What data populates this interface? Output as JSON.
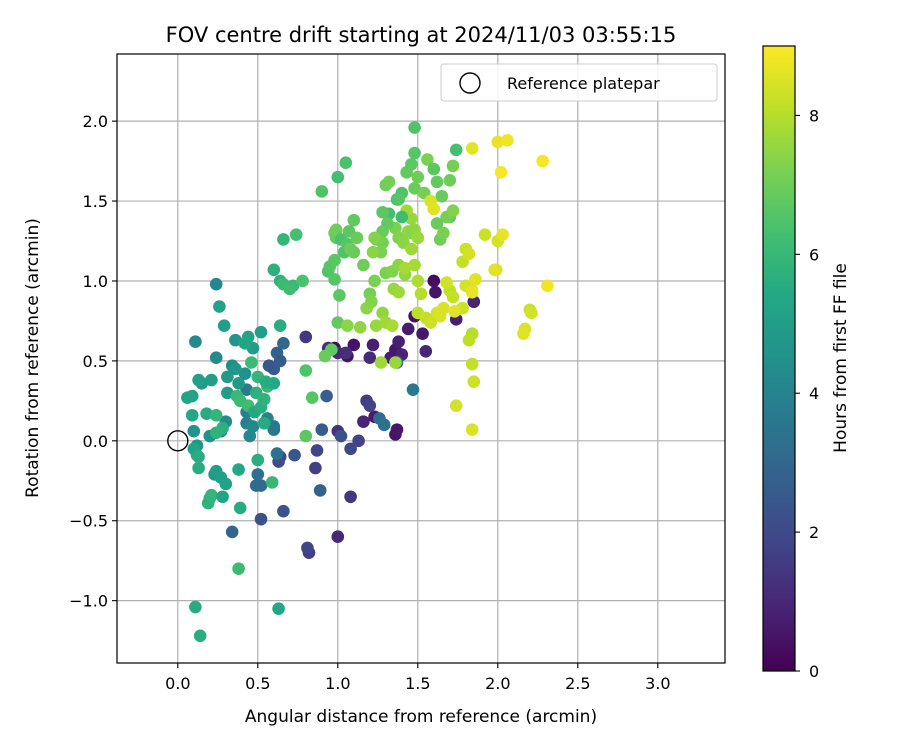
{
  "chart_data": {
    "type": "scatter",
    "title": "FOV centre drift starting at 2024/11/03 03:55:15",
    "xlabel": "Angular distance from reference (arcmin)",
    "ylabel": "Rotation from reference (arcmin)",
    "xlim": [
      -0.38,
      3.42
    ],
    "ylim": [
      -1.39,
      2.42
    ],
    "xticks": [
      0.0,
      0.5,
      1.0,
      1.5,
      2.0,
      2.5,
      3.0
    ],
    "xtick_labels": [
      "0.0",
      "0.5",
      "1.0",
      "1.5",
      "2.0",
      "2.5",
      "3.0"
    ],
    "yticks": [
      -1.0,
      -0.5,
      0.0,
      0.5,
      1.0,
      1.5,
      2.0
    ],
    "ytick_labels": [
      "−1.0",
      "−0.5",
      "0.0",
      "0.5",
      "1.0",
      "1.5",
      "2.0"
    ],
    "grid": true,
    "legend": {
      "position": "upper-right",
      "entries": [
        "Reference platepar"
      ]
    },
    "reference_point": {
      "x": 0.0,
      "y": 0.0
    },
    "colorbar": {
      "label": "Hours from first FF file",
      "min": 0,
      "max": 9.0,
      "ticks": [
        0,
        2,
        4,
        6,
        8
      ],
      "tick_labels": [
        "0",
        "2",
        "4",
        "6",
        "8"
      ],
      "colormap": "viridis"
    },
    "color_variable": "hours",
    "points": [
      [
        0.98,
        0.58,
        0.3
      ],
      [
        1.06,
        0.53,
        0.4
      ],
      [
        1.1,
        0.6,
        0.5
      ],
      [
        1.22,
        0.6,
        0.8
      ],
      [
        1.33,
        0.52,
        0.7
      ],
      [
        1.36,
        0.57,
        0.6
      ],
      [
        1.38,
        0.62,
        0.8
      ],
      [
        1.4,
        0.54,
        0.9
      ],
      [
        1.44,
        0.7,
        0.7
      ],
      [
        1.48,
        0.78,
        0.5
      ],
      [
        1.53,
        0.67,
        0.6
      ],
      [
        1.6,
        1.0,
        0.3
      ],
      [
        1.61,
        0.93,
        0.5
      ],
      [
        1.74,
        0.76,
        0.8
      ],
      [
        1.85,
        0.87,
        0.9
      ],
      [
        1.55,
        0.56,
        1.0
      ],
      [
        1.2,
        0.52,
        1.1
      ],
      [
        1.05,
        0.55,
        1.2
      ],
      [
        1.0,
        0.55,
        1.1
      ],
      [
        1.23,
        0.15,
        0.7
      ],
      [
        1.36,
        0.04,
        0.5
      ],
      [
        1.37,
        0.07,
        0.6
      ],
      [
        1.16,
        0.12,
        0.9
      ],
      [
        0.94,
        0.58,
        1.3
      ],
      [
        0.8,
        0.65,
        1.4
      ],
      [
        1.0,
        0.06,
        1.3
      ],
      [
        1.0,
        -0.6,
        1.0
      ],
      [
        1.08,
        -0.35,
        1.4
      ],
      [
        0.82,
        -0.7,
        1.6
      ],
      [
        0.81,
        -0.67,
        1.8
      ],
      [
        0.86,
        -0.17,
        1.7
      ],
      [
        0.87,
        -0.06,
        1.9
      ],
      [
        0.64,
        -0.1,
        2.0
      ],
      [
        0.63,
        -0.13,
        2.1
      ],
      [
        0.52,
        -0.49,
        2.2
      ],
      [
        0.66,
        -0.44,
        2.3
      ],
      [
        0.73,
        -0.09,
        2.4
      ],
      [
        1.02,
        0.03,
        2.2
      ],
      [
        1.08,
        -0.05,
        2.0
      ],
      [
        1.13,
        0.0,
        1.8
      ],
      [
        1.18,
        0.25,
        1.6
      ],
      [
        1.2,
        0.22,
        1.8
      ],
      [
        0.9,
        0.07,
        2.6
      ],
      [
        0.89,
        -0.31,
        2.8
      ],
      [
        0.93,
        0.28,
        2.7
      ],
      [
        0.6,
        0.45,
        2.6
      ],
      [
        0.62,
        0.55,
        2.8
      ],
      [
        0.57,
        0.47,
        2.4
      ],
      [
        0.64,
        0.5,
        2.6
      ],
      [
        0.66,
        0.61,
        2.9
      ],
      [
        0.34,
        -0.57,
        3.0
      ],
      [
        0.52,
        -0.28,
        3.2
      ],
      [
        0.49,
        -0.28,
        3.1
      ],
      [
        0.5,
        -0.21,
        3.3
      ],
      [
        0.62,
        -0.08,
        3.4
      ],
      [
        0.6,
        0.07,
        3.5
      ],
      [
        1.26,
        0.14,
        3.2
      ],
      [
        1.29,
        0.1,
        3.4
      ],
      [
        1.37,
        0.49,
        3.5
      ],
      [
        1.47,
        0.32,
        3.6
      ],
      [
        0.6,
        0.09,
        3.6
      ],
      [
        0.43,
        0.32,
        3.7
      ],
      [
        0.43,
        0.18,
        3.8
      ],
      [
        0.43,
        0.11,
        3.9
      ],
      [
        0.56,
        0.14,
        4.0
      ],
      [
        0.45,
        0.03,
        4.1
      ],
      [
        0.47,
        0.09,
        4.2
      ],
      [
        0.3,
        0.12,
        4.3
      ],
      [
        0.27,
        0.06,
        4.4
      ],
      [
        0.2,
        0.03,
        4.5
      ],
      [
        0.1,
        0.06,
        4.6
      ],
      [
        0.12,
        -0.03,
        4.7
      ],
      [
        0.23,
        -0.21,
        4.8
      ],
      [
        0.15,
        0.36,
        4.9
      ],
      [
        0.21,
        0.38,
        5.0
      ],
      [
        0.13,
        0.38,
        5.1
      ],
      [
        0.09,
        0.28,
        5.2
      ],
      [
        0.06,
        0.27,
        5.3
      ],
      [
        0.09,
        0.16,
        5.4
      ],
      [
        0.18,
        0.17,
        5.5
      ],
      [
        0.11,
        0.62,
        4.2
      ],
      [
        0.24,
        0.52,
        4.3
      ],
      [
        0.34,
        0.47,
        4.4
      ],
      [
        0.42,
        0.42,
        4.5
      ],
      [
        0.36,
        0.63,
        4.6
      ],
      [
        0.36,
        0.45,
        4.7
      ],
      [
        0.31,
        0.4,
        4.8
      ],
      [
        0.38,
        0.36,
        4.9
      ],
      [
        0.31,
        0.3,
        5.0
      ],
      [
        0.29,
        0.72,
        5.1
      ],
      [
        0.24,
        0.98,
        4.1
      ],
      [
        0.26,
        0.84,
        5.2
      ],
      [
        0.1,
        -0.05,
        5.3
      ],
      [
        0.12,
        -0.09,
        5.4
      ],
      [
        0.13,
        -0.17,
        5.5
      ],
      [
        0.13,
        -0.1,
        5.6
      ],
      [
        0.2,
        -0.36,
        5.7
      ],
      [
        0.19,
        -0.39,
        5.8
      ],
      [
        0.21,
        -0.34,
        5.9
      ],
      [
        0.24,
        -0.19,
        5.0
      ],
      [
        0.27,
        -0.23,
        5.1
      ],
      [
        0.3,
        -0.27,
        5.2
      ],
      [
        0.28,
        -0.35,
        5.3
      ],
      [
        0.38,
        -0.18,
        5.4
      ],
      [
        0.39,
        -0.42,
        5.5
      ],
      [
        0.5,
        -0.12,
        5.6
      ],
      [
        0.59,
        -0.26,
        6.0
      ],
      [
        0.38,
        -0.8,
        6.1
      ],
      [
        0.63,
        -1.05,
        5.4
      ],
      [
        0.11,
        -1.04,
        5.5
      ],
      [
        0.14,
        -1.22,
        5.6
      ],
      [
        0.28,
        0.08,
        5.7
      ],
      [
        0.24,
        0.05,
        5.8
      ],
      [
        0.24,
        0.16,
        5.9
      ],
      [
        0.37,
        0.28,
        6.0
      ],
      [
        0.39,
        0.25,
        6.1
      ],
      [
        0.44,
        0.22,
        6.2
      ],
      [
        0.48,
        0.18,
        5.4
      ],
      [
        0.54,
        0.11,
        5.5
      ],
      [
        0.52,
        0.21,
        5.6
      ],
      [
        0.49,
        0.3,
        5.7
      ],
      [
        0.54,
        0.26,
        5.8
      ],
      [
        0.5,
        0.4,
        5.9
      ],
      [
        0.56,
        0.34,
        6.0
      ],
      [
        0.46,
        0.49,
        6.1
      ],
      [
        0.47,
        0.58,
        5.0
      ],
      [
        0.52,
        0.68,
        5.1
      ],
      [
        0.44,
        0.65,
        5.2
      ],
      [
        0.42,
        0.61,
        5.3
      ],
      [
        0.6,
        0.36,
        5.4
      ],
      [
        0.55,
        0.37,
        5.5
      ],
      [
        0.64,
        0.72,
        5.6
      ],
      [
        0.6,
        1.07,
        5.7
      ],
      [
        0.64,
        1.0,
        5.8
      ],
      [
        0.66,
        1.26,
        5.9
      ],
      [
        0.72,
        0.97,
        6.0
      ],
      [
        0.66,
        0.98,
        6.1
      ],
      [
        0.7,
        0.95,
        6.2
      ],
      [
        0.74,
        1.29,
        6.3
      ],
      [
        0.78,
        1.0,
        6.4
      ],
      [
        0.8,
        0.44,
        6.5
      ],
      [
        0.84,
        0.27,
        6.6
      ],
      [
        0.8,
        0.03,
        6.7
      ],
      [
        0.96,
        0.57,
        6.8
      ],
      [
        0.92,
        0.53,
        6.9
      ],
      [
        0.94,
        1.06,
        6.5
      ],
      [
        0.95,
        1.09,
        6.6
      ],
      [
        0.98,
        1.13,
        6.7
      ],
      [
        0.99,
        1.27,
        6.8
      ],
      [
        0.98,
        1.3,
        6.9
      ],
      [
        0.99,
        1.32,
        7.0
      ],
      [
        1.02,
        1.26,
        6.4
      ],
      [
        1.04,
        1.18,
        6.5
      ],
      [
        1.06,
        1.23,
        6.6
      ],
      [
        1.07,
        1.31,
        6.7
      ],
      [
        1.1,
        1.38,
        6.8
      ],
      [
        1.12,
        1.27,
        6.9
      ],
      [
        1.08,
        1.2,
        7.0
      ],
      [
        1.0,
        1.65,
        6.3
      ],
      [
        1.05,
        1.74,
        6.4
      ],
      [
        0.9,
        1.56,
        6.5
      ],
      [
        0.98,
        1.01,
        6.6
      ],
      [
        1.01,
        0.91,
        6.7
      ],
      [
        1.0,
        0.74,
        6.8
      ],
      [
        1.1,
        1.18,
        6.9
      ],
      [
        1.16,
        1.1,
        7.0
      ],
      [
        1.2,
        0.92,
        7.1
      ],
      [
        1.23,
        1.0,
        7.2
      ],
      [
        1.21,
        0.87,
        7.3
      ],
      [
        1.18,
        0.83,
        7.4
      ],
      [
        1.28,
        0.8,
        7.5
      ],
      [
        1.24,
        0.72,
        7.6
      ],
      [
        1.3,
        0.74,
        7.7
      ],
      [
        1.34,
        0.72,
        7.8
      ],
      [
        1.06,
        0.72,
        7.4
      ],
      [
        1.14,
        0.71,
        7.5
      ],
      [
        1.36,
        0.49,
        7.6
      ],
      [
        1.27,
        0.49,
        7.7
      ],
      [
        1.3,
        1.05,
        7.2
      ],
      [
        1.34,
        1.06,
        7.3
      ],
      [
        1.38,
        1.1,
        7.4
      ],
      [
        1.42,
        1.04,
        7.5
      ],
      [
        1.35,
        0.95,
        7.6
      ],
      [
        1.38,
        0.93,
        7.7
      ],
      [
        1.42,
        1.08,
        7.8
      ],
      [
        1.36,
        1.33,
        7.2
      ],
      [
        1.38,
        1.27,
        7.3
      ],
      [
        1.41,
        1.24,
        7.4
      ],
      [
        1.44,
        1.31,
        7.5
      ],
      [
        1.46,
        1.39,
        7.6
      ],
      [
        1.43,
        1.44,
        7.7
      ],
      [
        1.4,
        1.4,
        6.2
      ],
      [
        1.32,
        1.42,
        6.3
      ],
      [
        1.37,
        1.51,
        6.4
      ],
      [
        1.4,
        1.55,
        6.5
      ],
      [
        1.38,
        1.51,
        6.6
      ],
      [
        1.28,
        1.43,
        6.7
      ],
      [
        1.31,
        1.36,
        6.8
      ],
      [
        1.28,
        1.31,
        6.9
      ],
      [
        1.24,
        1.26,
        7.0
      ],
      [
        1.28,
        1.24,
        7.1
      ],
      [
        1.27,
        1.18,
        7.2
      ],
      [
        1.23,
        1.27,
        7.3
      ],
      [
        1.22,
        1.18,
        7.4
      ],
      [
        1.3,
        1.6,
        7.0
      ],
      [
        1.32,
        1.62,
        7.1
      ],
      [
        1.48,
        1.96,
        6.5
      ],
      [
        1.48,
        1.8,
        6.6
      ],
      [
        1.46,
        1.73,
        6.7
      ],
      [
        1.43,
        1.68,
        6.8
      ],
      [
        1.48,
        1.58,
        6.9
      ],
      [
        1.5,
        1.65,
        7.0
      ],
      [
        1.54,
        1.55,
        7.1
      ],
      [
        1.56,
        1.76,
        7.2
      ],
      [
        1.6,
        1.7,
        6.7
      ],
      [
        1.62,
        1.62,
        6.8
      ],
      [
        1.65,
        1.53,
        6.9
      ],
      [
        1.7,
        1.63,
        7.0
      ],
      [
        1.72,
        1.72,
        7.1
      ],
      [
        1.74,
        1.82,
        6.3
      ],
      [
        1.7,
        1.4,
        6.8
      ],
      [
        1.62,
        1.36,
        6.9
      ],
      [
        1.64,
        1.26,
        7.0
      ],
      [
        1.68,
        1.4,
        7.1
      ],
      [
        1.66,
        1.3,
        7.2
      ],
      [
        1.72,
        1.44,
        7.3
      ],
      [
        1.46,
        1.3,
        7.4
      ],
      [
        1.48,
        1.32,
        7.5
      ],
      [
        1.5,
        1.27,
        7.6
      ],
      [
        1.46,
        1.2,
        7.7
      ],
      [
        1.48,
        1.1,
        7.8
      ],
      [
        1.5,
        1.0,
        7.9
      ],
      [
        1.52,
        0.92,
        8.0
      ],
      [
        1.5,
        0.8,
        8.1
      ],
      [
        1.55,
        0.77,
        8.2
      ],
      [
        1.58,
        0.74,
        8.3
      ],
      [
        1.62,
        0.8,
        8.4
      ],
      [
        1.64,
        0.78,
        8.5
      ],
      [
        1.7,
        0.94,
        8.1
      ],
      [
        1.72,
        0.9,
        8.2
      ],
      [
        1.78,
        0.83,
        8.3
      ],
      [
        1.8,
        0.97,
        8.4
      ],
      [
        1.84,
        0.94,
        8.5
      ],
      [
        1.78,
        1.12,
        8.2
      ],
      [
        1.8,
        1.2,
        8.3
      ],
      [
        1.82,
        1.17,
        8.4
      ],
      [
        1.86,
        1.01,
        8.6
      ],
      [
        1.84,
        0.93,
        8.7
      ],
      [
        1.84,
        0.67,
        8.0
      ],
      [
        1.82,
        0.63,
        8.1
      ],
      [
        1.84,
        0.48,
        8.2
      ],
      [
        1.85,
        0.37,
        8.3
      ],
      [
        1.74,
        0.22,
        8.4
      ],
      [
        1.84,
        0.07,
        8.5
      ],
      [
        1.68,
        0.99,
        8.4
      ],
      [
        1.66,
        0.83,
        8.5
      ],
      [
        1.73,
        0.81,
        8.6
      ],
      [
        1.58,
        1.5,
        8.5
      ],
      [
        1.6,
        1.45,
        8.6
      ],
      [
        1.84,
        1.83,
        8.6
      ],
      [
        2.0,
        1.87,
        8.7
      ],
      [
        2.06,
        1.88,
        8.8
      ],
      [
        2.02,
        1.68,
        8.9
      ],
      [
        1.92,
        1.29,
        8.3
      ],
      [
        2.0,
        1.25,
        8.4
      ],
      [
        1.99,
        1.07,
        8.5
      ],
      [
        2.2,
        0.82,
        8.3
      ],
      [
        2.21,
        0.8,
        8.4
      ],
      [
        2.17,
        0.7,
        8.5
      ],
      [
        2.16,
        0.67,
        8.6
      ],
      [
        2.28,
        1.75,
        8.9
      ],
      [
        2.31,
        0.97,
        8.8
      ],
      [
        1.98,
        1.07,
        8.6
      ],
      [
        2.03,
        1.29,
        8.7
      ]
    ]
  }
}
